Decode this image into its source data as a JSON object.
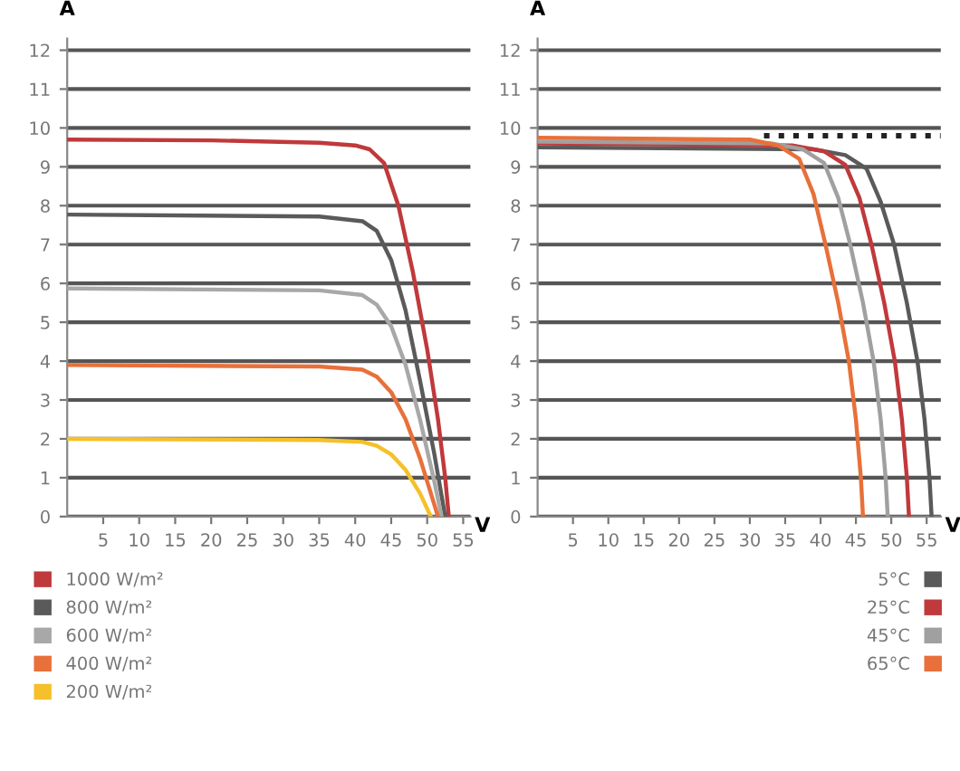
{
  "chart_data": [
    {
      "type": "line",
      "xlabel": "V",
      "ylabel": "A",
      "xlim": [
        0,
        56
      ],
      "ylim": [
        0,
        12.3
      ],
      "xticks": [
        5,
        10,
        15,
        20,
        25,
        30,
        35,
        40,
        45,
        50,
        55
      ],
      "yticks": [
        0,
        1,
        2,
        3,
        4,
        5,
        6,
        7,
        8,
        9,
        10,
        11,
        12
      ],
      "grid": "y",
      "legend": "bottom left",
      "line_style": "solid",
      "marker": "none",
      "series": [
        {
          "name": "1000 W/m²",
          "color": "#c0393b",
          "x": [
            0,
            20,
            35,
            40,
            42,
            44,
            46,
            48,
            50,
            51.5,
            52.5,
            53
          ],
          "values": [
            9.7,
            9.68,
            9.62,
            9.55,
            9.45,
            9.1,
            8.0,
            6.3,
            4.3,
            2.5,
            1.0,
            0
          ]
        },
        {
          "name": "800 W/m²",
          "color": "#5a5a5a",
          "x": [
            0,
            35,
            41,
            43,
            45,
            47,
            49,
            51,
            52.5
          ],
          "values": [
            7.77,
            7.72,
            7.6,
            7.35,
            6.6,
            5.3,
            3.5,
            1.6,
            0
          ]
        },
        {
          "name": "600 W/m²",
          "color": "#a8a8a8",
          "x": [
            0,
            35,
            41,
            43,
            45,
            47,
            49,
            51,
            52
          ],
          "values": [
            5.87,
            5.82,
            5.7,
            5.45,
            4.9,
            3.9,
            2.5,
            0.9,
            0
          ]
        },
        {
          "name": "400 W/m²",
          "color": "#e8703a",
          "x": [
            0,
            35,
            41,
            43,
            45,
            47,
            49,
            51,
            51.5
          ],
          "values": [
            3.9,
            3.86,
            3.78,
            3.6,
            3.2,
            2.5,
            1.5,
            0.3,
            0
          ]
        },
        {
          "name": "200 W/m²",
          "color": "#f5c02a",
          "x": [
            0,
            35,
            41,
            43,
            45,
            47,
            49,
            50.5
          ],
          "values": [
            2.0,
            1.97,
            1.92,
            1.82,
            1.6,
            1.2,
            0.6,
            0
          ]
        }
      ]
    },
    {
      "type": "line",
      "xlabel": "V",
      "ylabel": "A",
      "xlim": [
        0,
        57
      ],
      "ylim": [
        0,
        12.3
      ],
      "xticks": [
        5,
        10,
        15,
        20,
        25,
        30,
        35,
        40,
        45,
        50,
        55
      ],
      "yticks": [
        0,
        1,
        2,
        3,
        4,
        5,
        6,
        7,
        8,
        9,
        10,
        11,
        12
      ],
      "grid": "y",
      "legend": "bottom right",
      "line_style": "solid",
      "marker": "none",
      "series": [
        {
          "name": "5°C",
          "color": "#5a5a5a",
          "x": [
            0,
            39,
            43.5,
            46.5,
            48.5,
            50.4,
            52.2,
            53.7,
            54.7,
            55.4,
            55.7
          ],
          "values": [
            9.5,
            9.45,
            9.3,
            8.95,
            8.1,
            7,
            5.5,
            4,
            2.5,
            1,
            0
          ]
        },
        {
          "name": "25°C",
          "color": "#c0393b",
          "x": [
            0,
            36,
            40.5,
            43.5,
            45.5,
            47.2,
            49,
            50.5,
            51.5,
            52.2,
            52.5
          ],
          "values": [
            9.6,
            9.55,
            9.4,
            9.05,
            8.2,
            7,
            5.5,
            4,
            2.5,
            1,
            0
          ]
        },
        {
          "name": "45°C",
          "color": "#a0a0a0",
          "x": [
            0,
            33,
            37.5,
            40.5,
            42.5,
            44.2,
            46,
            47.5,
            48.5,
            49.2,
            49.5
          ],
          "values": [
            9.65,
            9.6,
            9.45,
            9.1,
            8.2,
            7,
            5.5,
            4,
            2.5,
            1,
            0
          ]
        },
        {
          "name": "65°C",
          "color": "#e8703a",
          "x": [
            0,
            30,
            34,
            37,
            39,
            40.7,
            42.5,
            44,
            45,
            45.7,
            46
          ],
          "values": [
            9.75,
            9.7,
            9.55,
            9.2,
            8.3,
            7,
            5.5,
            4,
            2.5,
            1,
            0
          ]
        },
        {
          "color": "#222222",
          "line_style": "dotted",
          "x": [
            32,
            57
          ],
          "values": [
            9.8,
            9.8
          ]
        }
      ]
    }
  ]
}
